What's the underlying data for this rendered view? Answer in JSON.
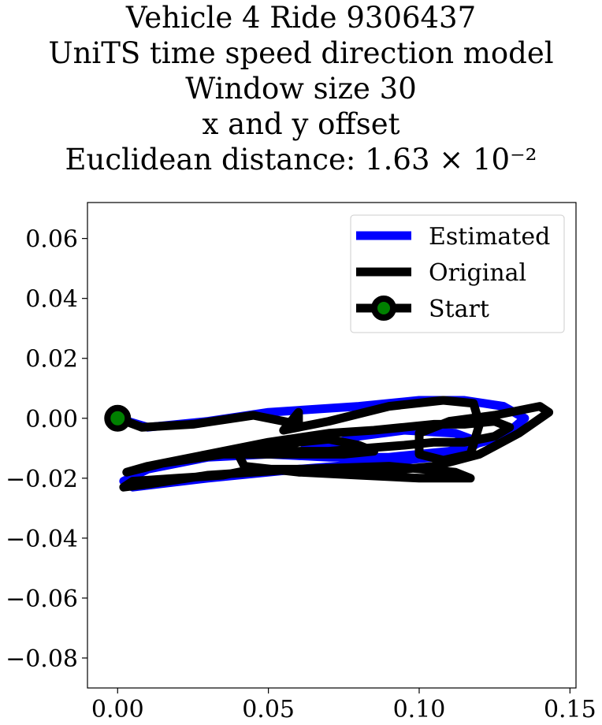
{
  "chart_data": {
    "type": "line",
    "title_lines": [
      "Vehicle 4 Ride 9306437",
      "UniTS time speed direction model",
      "Window size 30",
      "x and y offset",
      "Euclidean distance: 1.63 × 10⁻²"
    ],
    "xlabel": "",
    "ylabel": "",
    "xlim": [
      -0.01,
      0.152
    ],
    "ylim": [
      -0.09,
      0.072
    ],
    "xticks": [
      0.0,
      0.05,
      0.1,
      0.15
    ],
    "xtick_labels": [
      "0.00",
      "0.05",
      "0.10",
      "0.15"
    ],
    "yticks": [
      0.06,
      0.04,
      0.02,
      0.0,
      -0.02,
      -0.04,
      -0.06,
      -0.08
    ],
    "ytick_labels": [
      "0.06",
      "0.04",
      "0.02",
      "0.00",
      "−0.02",
      "−0.04",
      "−0.06",
      "−0.08"
    ],
    "grid": false,
    "legend_position": "top-right",
    "series": [
      {
        "name": "Estimated",
        "color": "#0000ff",
        "points": [
          [
            0.0,
            0.0
          ],
          [
            0.01,
            -0.003
          ],
          [
            0.03,
            -0.001
          ],
          [
            0.05,
            0.002
          ],
          [
            0.08,
            0.004
          ],
          [
            0.1,
            0.006
          ],
          [
            0.115,
            0.006
          ],
          [
            0.128,
            0.004
          ],
          [
            0.135,
            0.0
          ],
          [
            0.128,
            -0.006
          ],
          [
            0.11,
            -0.011
          ],
          [
            0.09,
            -0.013
          ],
          [
            0.07,
            -0.013
          ],
          [
            0.05,
            -0.012
          ],
          [
            0.03,
            -0.013
          ],
          [
            0.01,
            -0.017
          ],
          [
            0.002,
            -0.021
          ],
          [
            0.005,
            -0.023
          ],
          [
            0.03,
            -0.02
          ],
          [
            0.06,
            -0.017
          ],
          [
            0.085,
            -0.015
          ],
          [
            0.105,
            -0.013
          ],
          [
            0.115,
            -0.011
          ],
          [
            0.12,
            -0.008
          ],
          [
            0.112,
            -0.005
          ],
          [
            0.095,
            -0.004
          ],
          [
            0.08,
            -0.006
          ],
          [
            0.07,
            -0.009
          ],
          [
            0.062,
            -0.01
          ]
        ]
      },
      {
        "name": "Original",
        "color": "#000000",
        "points": [
          [
            0.0,
            0.0
          ],
          [
            0.008,
            -0.003
          ],
          [
            0.025,
            -0.002
          ],
          [
            0.045,
            0.001
          ],
          [
            0.06,
            -0.002
          ],
          [
            0.06,
            0.002
          ],
          [
            0.055,
            -0.004
          ],
          [
            0.07,
            -0.001
          ],
          [
            0.09,
            0.004
          ],
          [
            0.108,
            0.006
          ],
          [
            0.118,
            0.005
          ],
          [
            0.12,
            -0.002
          ],
          [
            0.117,
            -0.012
          ],
          [
            0.108,
            -0.014
          ],
          [
            0.1,
            -0.012
          ],
          [
            0.1,
            -0.005
          ],
          [
            0.11,
            -0.001
          ],
          [
            0.125,
            0.001
          ],
          [
            0.14,
            0.004
          ],
          [
            0.143,
            0.002
          ],
          [
            0.133,
            -0.005
          ],
          [
            0.12,
            -0.012
          ],
          [
            0.105,
            -0.016
          ],
          [
            0.085,
            -0.018
          ],
          [
            0.062,
            -0.017
          ],
          [
            0.045,
            -0.017
          ],
          [
            0.035,
            -0.019
          ],
          [
            0.02,
            -0.02
          ],
          [
            0.005,
            -0.021
          ],
          [
            0.002,
            -0.023
          ],
          [
            0.01,
            -0.022
          ],
          [
            0.03,
            -0.019
          ],
          [
            0.06,
            -0.017
          ],
          [
            0.09,
            -0.016
          ],
          [
            0.112,
            -0.018
          ],
          [
            0.117,
            -0.02
          ],
          [
            0.1,
            -0.02
          ],
          [
            0.08,
            -0.019
          ],
          [
            0.06,
            -0.018
          ],
          [
            0.042,
            -0.016
          ],
          [
            0.04,
            -0.012
          ],
          [
            0.05,
            -0.01
          ],
          [
            0.06,
            -0.008
          ],
          [
            0.07,
            -0.007
          ],
          [
            0.08,
            -0.009
          ],
          [
            0.085,
            -0.011
          ],
          [
            0.075,
            -0.012
          ],
          [
            0.055,
            -0.012
          ],
          [
            0.035,
            -0.012
          ],
          [
            0.015,
            -0.015
          ],
          [
            0.003,
            -0.018
          ],
          [
            0.01,
            -0.016
          ],
          [
            0.03,
            -0.012
          ],
          [
            0.05,
            -0.008
          ],
          [
            0.07,
            -0.005
          ],
          [
            0.085,
            -0.004
          ],
          [
            0.095,
            -0.003
          ],
          [
            0.105,
            -0.002
          ],
          [
            0.115,
            -0.002
          ],
          [
            0.125,
            -0.001
          ],
          [
            0.13,
            -0.003
          ],
          [
            0.125,
            -0.006
          ],
          [
            0.115,
            -0.008
          ],
          [
            0.105,
            -0.008
          ],
          [
            0.095,
            -0.009
          ],
          [
            0.082,
            -0.01
          ],
          [
            0.07,
            -0.011
          ],
          [
            0.058,
            -0.011
          ],
          [
            0.045,
            -0.011
          ],
          [
            0.04,
            -0.012
          ]
        ]
      },
      {
        "name": "Start",
        "color": "#000000",
        "marker_fill": "#008000",
        "points": [
          [
            0.0,
            0.0
          ]
        ]
      }
    ]
  }
}
